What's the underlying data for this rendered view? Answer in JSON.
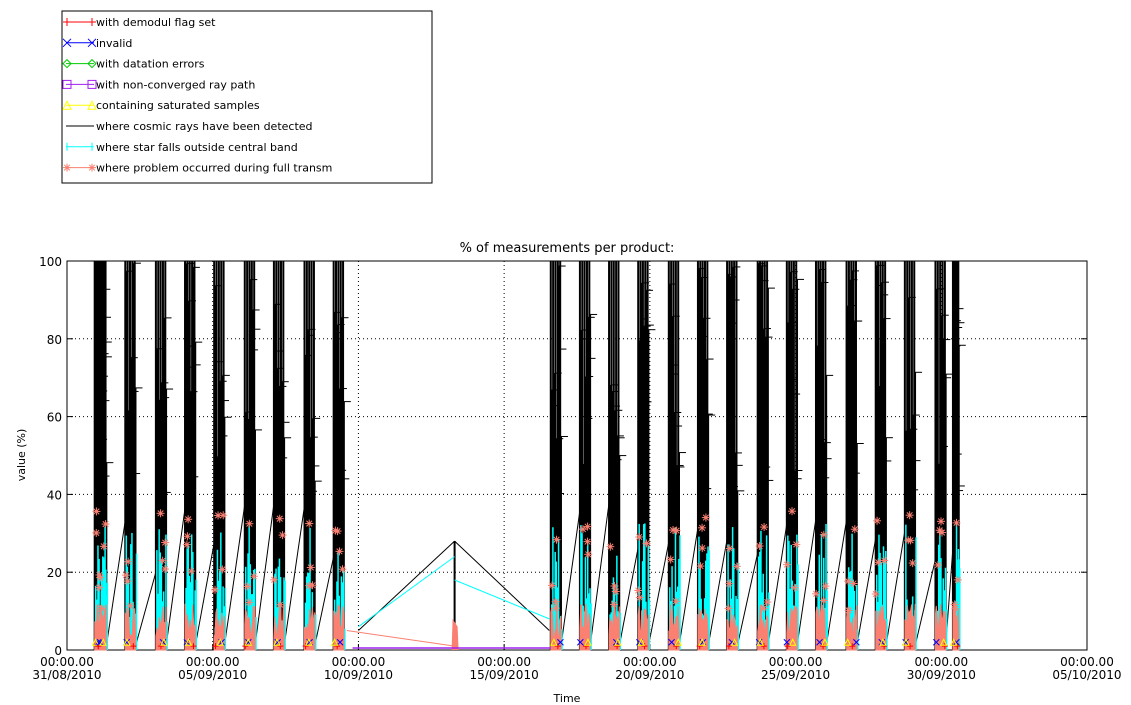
{
  "chart_data": {
    "type": "line",
    "title": "% of measurements per product:",
    "xlabel": "Time",
    "ylabel": "value (%)",
    "ylim": [
      0,
      100
    ],
    "yticks": [
      "0",
      "20",
      "40",
      "60",
      "80",
      "100"
    ],
    "xticks": [
      {
        "time": "00:00.00",
        "date": "31/08/2010"
      },
      {
        "time": "00:00.00",
        "date": "05/09/2010"
      },
      {
        "time": "00:00.00",
        "date": "10/09/2010"
      },
      {
        "time": "00:00.00",
        "date": "15/09/2010"
      },
      {
        "time": "00:00.00",
        "date": "20/09/2010"
      },
      {
        "time": "00:00.00",
        "date": "25/09/2010"
      },
      {
        "time": "00:00.00",
        "date": "30/09/2010"
      },
      {
        "time": "00:00.00",
        "date": "05/10/2010"
      }
    ],
    "xlim": [
      "31/08/2010",
      "05/10/2010"
    ],
    "grid": true,
    "legend_position": "top-left, above plot",
    "series": [
      {
        "name": "with demodul flag set",
        "color": "#ff0000",
        "marker": "plus",
        "peak": 1
      },
      {
        "name": "invalid",
        "color": "#0000ff",
        "marker": "cross",
        "peak": 2
      },
      {
        "name": "with datation errors",
        "color": "#00cc00",
        "marker": "diamond",
        "peak": 1
      },
      {
        "name": "with non-converged ray path",
        "color": "#a020f0",
        "marker": "square",
        "peak": 1
      },
      {
        "name": "containing saturated samples",
        "color": "#ffff00",
        "marker": "triangle",
        "peak": 2
      },
      {
        "name": "where cosmic rays have been detected",
        "color": "#000000",
        "marker": "none",
        "peak": 100
      },
      {
        "name": "where star falls outside central band",
        "color": "#00ffff",
        "marker": "bar",
        "peak": 36
      },
      {
        "name": "where problem occurred during full transm",
        "color": "#fa8072",
        "marker": "asterisk",
        "peak": 44
      }
    ],
    "cycles": [
      {
        "start": 31.95,
        "end": 32.3
      },
      {
        "start": 1.0,
        "end": 1.35
      },
      {
        "start": 2.0,
        "end": 2.35
      },
      {
        "start": 3.05,
        "end": 3.4
      },
      {
        "start": 4.05,
        "end": 4.4
      },
      {
        "start": 5.05,
        "end": 5.4
      },
      {
        "start": 6.1,
        "end": 6.45
      },
      {
        "start": 7.1,
        "end": 7.45
      },
      {
        "start": 8.15,
        "end": 8.5
      },
      {
        "start": 9.15,
        "end": 9.5
      },
      {
        "start": 16.6,
        "end": 16.95
      },
      {
        "start": 17.6,
        "end": 17.95
      },
      {
        "start": 18.6,
        "end": 18.95
      },
      {
        "start": 19.6,
        "end": 19.95
      },
      {
        "start": 20.65,
        "end": 21.0
      },
      {
        "start": 21.65,
        "end": 22.0
      },
      {
        "start": 22.65,
        "end": 23.0
      },
      {
        "start": 23.7,
        "end": 24.05
      },
      {
        "start": 24.7,
        "end": 25.05
      },
      {
        "start": 25.7,
        "end": 26.05
      },
      {
        "start": 26.75,
        "end": 27.1
      },
      {
        "start": 27.75,
        "end": 28.1
      },
      {
        "start": 28.75,
        "end": 29.1
      },
      {
        "start": 29.8,
        "end": 30.15
      },
      {
        "start": 30.4,
        "end": 30.6
      }
    ],
    "isolated_event": {
      "date": "13/09/2010",
      "cosmic_rays": 28,
      "star_outside_band": 27
    }
  }
}
